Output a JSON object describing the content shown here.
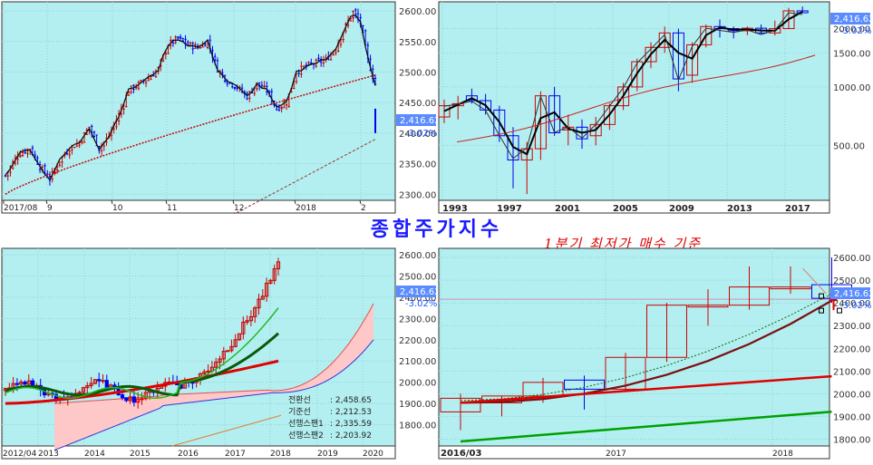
{
  "title": "종합주가지수",
  "annotation": "1분기 최저가 매수 기준",
  "current_value": "2,416.62",
  "change": "-3.02%",
  "colors": {
    "panel_bg": "#b3eff0",
    "up": "#cc0000",
    "down": "#0000ee",
    "ma_dark": "#000000",
    "ma_green": "#00a000",
    "ma_red": "#e00000",
    "cloud": "#ffc8c8",
    "label_box": "#5b8cff"
  },
  "chart_data": [
    {
      "id": "daily",
      "type": "candlestick",
      "period": "daily",
      "x_ticks": [
        "2017/08",
        "9",
        "10",
        "11",
        "12",
        "2018",
        "2"
      ],
      "y_ticks": [
        2300,
        2350,
        2400,
        2450,
        2500,
        2550,
        2600
      ],
      "ylim": [
        2290,
        2615
      ],
      "price_label": "2,416.62",
      "change_label": "-3.02%",
      "close_path": [
        [
          0,
          2330
        ],
        [
          5,
          2365
        ],
        [
          10,
          2375
        ],
        [
          14,
          2345
        ],
        [
          18,
          2325
        ],
        [
          22,
          2355
        ],
        [
          26,
          2375
        ],
        [
          30,
          2385
        ],
        [
          34,
          2410
        ],
        [
          38,
          2375
        ],
        [
          42,
          2395
        ],
        [
          46,
          2430
        ],
        [
          50,
          2470
        ],
        [
          54,
          2480
        ],
        [
          58,
          2490
        ],
        [
          62,
          2505
        ],
        [
          66,
          2545
        ],
        [
          70,
          2555
        ],
        [
          74,
          2545
        ],
        [
          78,
          2540
        ],
        [
          82,
          2550
        ],
        [
          86,
          2505
        ],
        [
          90,
          2485
        ],
        [
          94,
          2475
        ],
        [
          98,
          2460
        ],
        [
          102,
          2480
        ],
        [
          106,
          2470
        ],
        [
          110,
          2440
        ],
        [
          114,
          2450
        ],
        [
          118,
          2500
        ],
        [
          122,
          2510
        ],
        [
          126,
          2515
        ],
        [
          130,
          2520
        ],
        [
          134,
          2540
        ],
        [
          138,
          2575
        ],
        [
          141,
          2598
        ],
        [
          144,
          2580
        ],
        [
          147,
          2520
        ],
        [
          150,
          2480
        ]
      ],
      "ma120_start": 2300,
      "ma120_end": 2495,
      "trend_start": 2245,
      "trend_end": 2390
    },
    {
      "id": "yearly",
      "type": "candlestick",
      "period": "quarterly",
      "log_scale": true,
      "x_ticks": [
        "1993",
        "1997",
        "2001",
        "2005",
        "2009",
        "2013",
        "2017"
      ],
      "y_ticks": [
        500,
        1000,
        1500,
        2000
      ],
      "price_label": "2,416.62",
      "change_label": "-3.02%"
    },
    {
      "id": "ichimoku",
      "type": "ichimoku",
      "period": "monthly",
      "x_ticks": [
        "2012/04",
        "2013",
        "2014",
        "2015",
        "2016",
        "2017",
        "2018",
        "2019",
        "2020"
      ],
      "y_ticks": [
        1800,
        1900,
        2000,
        2100,
        2200,
        2300,
        2400,
        2500,
        2600
      ],
      "ylim": [
        1700,
        2630
      ],
      "price_label": "2,416.62",
      "change_label": "-3.02%",
      "legend": [
        {
          "name": "전환선",
          "value": "2,458.65"
        },
        {
          "name": "기준선",
          "value": "2,212.53"
        },
        {
          "name": "선행스팬1",
          "value": "2,335.59"
        },
        {
          "name": "선행스팬2",
          "value": "2,203.92"
        }
      ]
    },
    {
      "id": "quarterly",
      "type": "candlestick",
      "period": "quarterly",
      "x_ticks": [
        "2016/03",
        "2017",
        "2018"
      ],
      "y_ticks": [
        1800,
        1900,
        2000,
        2100,
        2200,
        2300,
        2400,
        2500,
        2600
      ],
      "ylim": [
        1770,
        2640
      ],
      "price_label": "2,416.62",
      "change_label": "-3.02%",
      "candles": [
        {
          "o": 1920,
          "h": 2000,
          "l": 1840,
          "c": 1980
        },
        {
          "o": 1960,
          "h": 1990,
          "l": 1900,
          "c": 1990
        },
        {
          "o": 1990,
          "h": 2070,
          "l": 1960,
          "c": 2050
        },
        {
          "o": 2060,
          "h": 2080,
          "l": 1930,
          "c": 2020
        },
        {
          "o": 2020,
          "h": 2180,
          "l": 2010,
          "c": 2160
        },
        {
          "o": 2160,
          "h": 2400,
          "l": 2140,
          "c": 2390
        },
        {
          "o": 2390,
          "h": 2460,
          "l": 2300,
          "c": 2390
        },
        {
          "o": 2390,
          "h": 2560,
          "l": 2370,
          "c": 2470
        },
        {
          "o": 2470,
          "h": 2560,
          "l": 2440,
          "c": 2470
        },
        {
          "o": 2480,
          "h": 2600,
          "l": 2400,
          "c": 2420
        }
      ]
    }
  ]
}
